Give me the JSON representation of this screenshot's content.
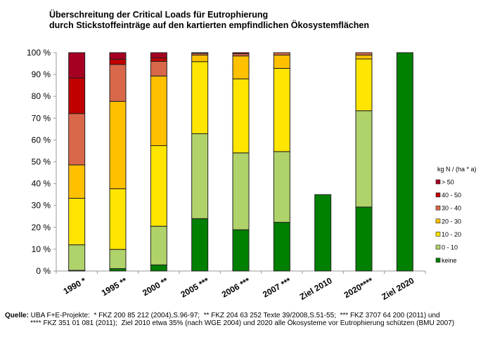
{
  "chart_data": {
    "type": "bar",
    "stacked": true,
    "title": "Überschreitung der Critical Loads für Eutrophierung",
    "subtitle": "durch Stickstoffeinträge auf den kartierten empfindlichen Ökosystemflächen",
    "xlabel": "",
    "ylabel": "",
    "ylim": [
      0,
      100
    ],
    "yticks": [
      "0 %",
      "10 %",
      "20 %",
      "30 %",
      "40 %",
      "50 %",
      "60 %",
      "70 %",
      "80 %",
      "90 %",
      "100 %"
    ],
    "grid": false,
    "legend_title": "kg N / (ha * a)",
    "legend_position": "right",
    "categories": [
      "1990 *",
      "1995 **",
      "2000 **",
      "2005 ***",
      "2006 ***",
      "2007 ***",
      "Ziel 2010",
      "2020****",
      "Ziel 2020"
    ],
    "series": [
      {
        "name": "keine",
        "color": "#007f00",
        "values": [
          0.3,
          1.1,
          2.8,
          24.0,
          18.9,
          22.3,
          35.0,
          29.3,
          100
        ]
      },
      {
        "name": " 0 - 10",
        "color": "#b0d26a",
        "values": [
          11.7,
          8.8,
          17.7,
          38.9,
          35.2,
          32.4,
          0,
          44.1,
          0
        ]
      },
      {
        "name": "10 - 20",
        "color": "#ffe500",
        "values": [
          21.3,
          27.8,
          36.9,
          33.0,
          33.9,
          38.1,
          0,
          23.7,
          0
        ]
      },
      {
        "name": "20 - 30",
        "color": "#ffc000",
        "values": [
          15.3,
          40.0,
          31.9,
          3.0,
          10.5,
          6.1,
          0,
          1.8,
          0
        ]
      },
      {
        "name": "30 - 40",
        "color": "#d9684a",
        "values": [
          23.5,
          16.9,
          6.7,
          0.8,
          1.0,
          1.1,
          0,
          1.1,
          0
        ]
      },
      {
        "name": "40 - 50",
        "color": "#c00000",
        "values": [
          16.3,
          2.4,
          1.6,
          0,
          0,
          0,
          0,
          0,
          0
        ]
      },
      {
        "name": "> 50",
        "color": "#a50021",
        "values": [
          11.6,
          3.0,
          2.4,
          0.3,
          0.5,
          0,
          0,
          0,
          0
        ]
      }
    ]
  },
  "source": {
    "label": "Quelle:",
    "line1": " UBA F+E-Projekte:  * FKZ 200 85 212 (2004),S.96-97;  ** FKZ 204 63 252 Texte 39/2008,S.51-55;  *** FKZ 3707 64 200 (2011) und",
    "line2": "             **** FKZ 351 01 081 (2011);  Ziel 2010 etwa 35% (nach WGE 2004) und 2020 alle Ökosysteme vor Eutrophierung schützen (BMU 2007)"
  }
}
